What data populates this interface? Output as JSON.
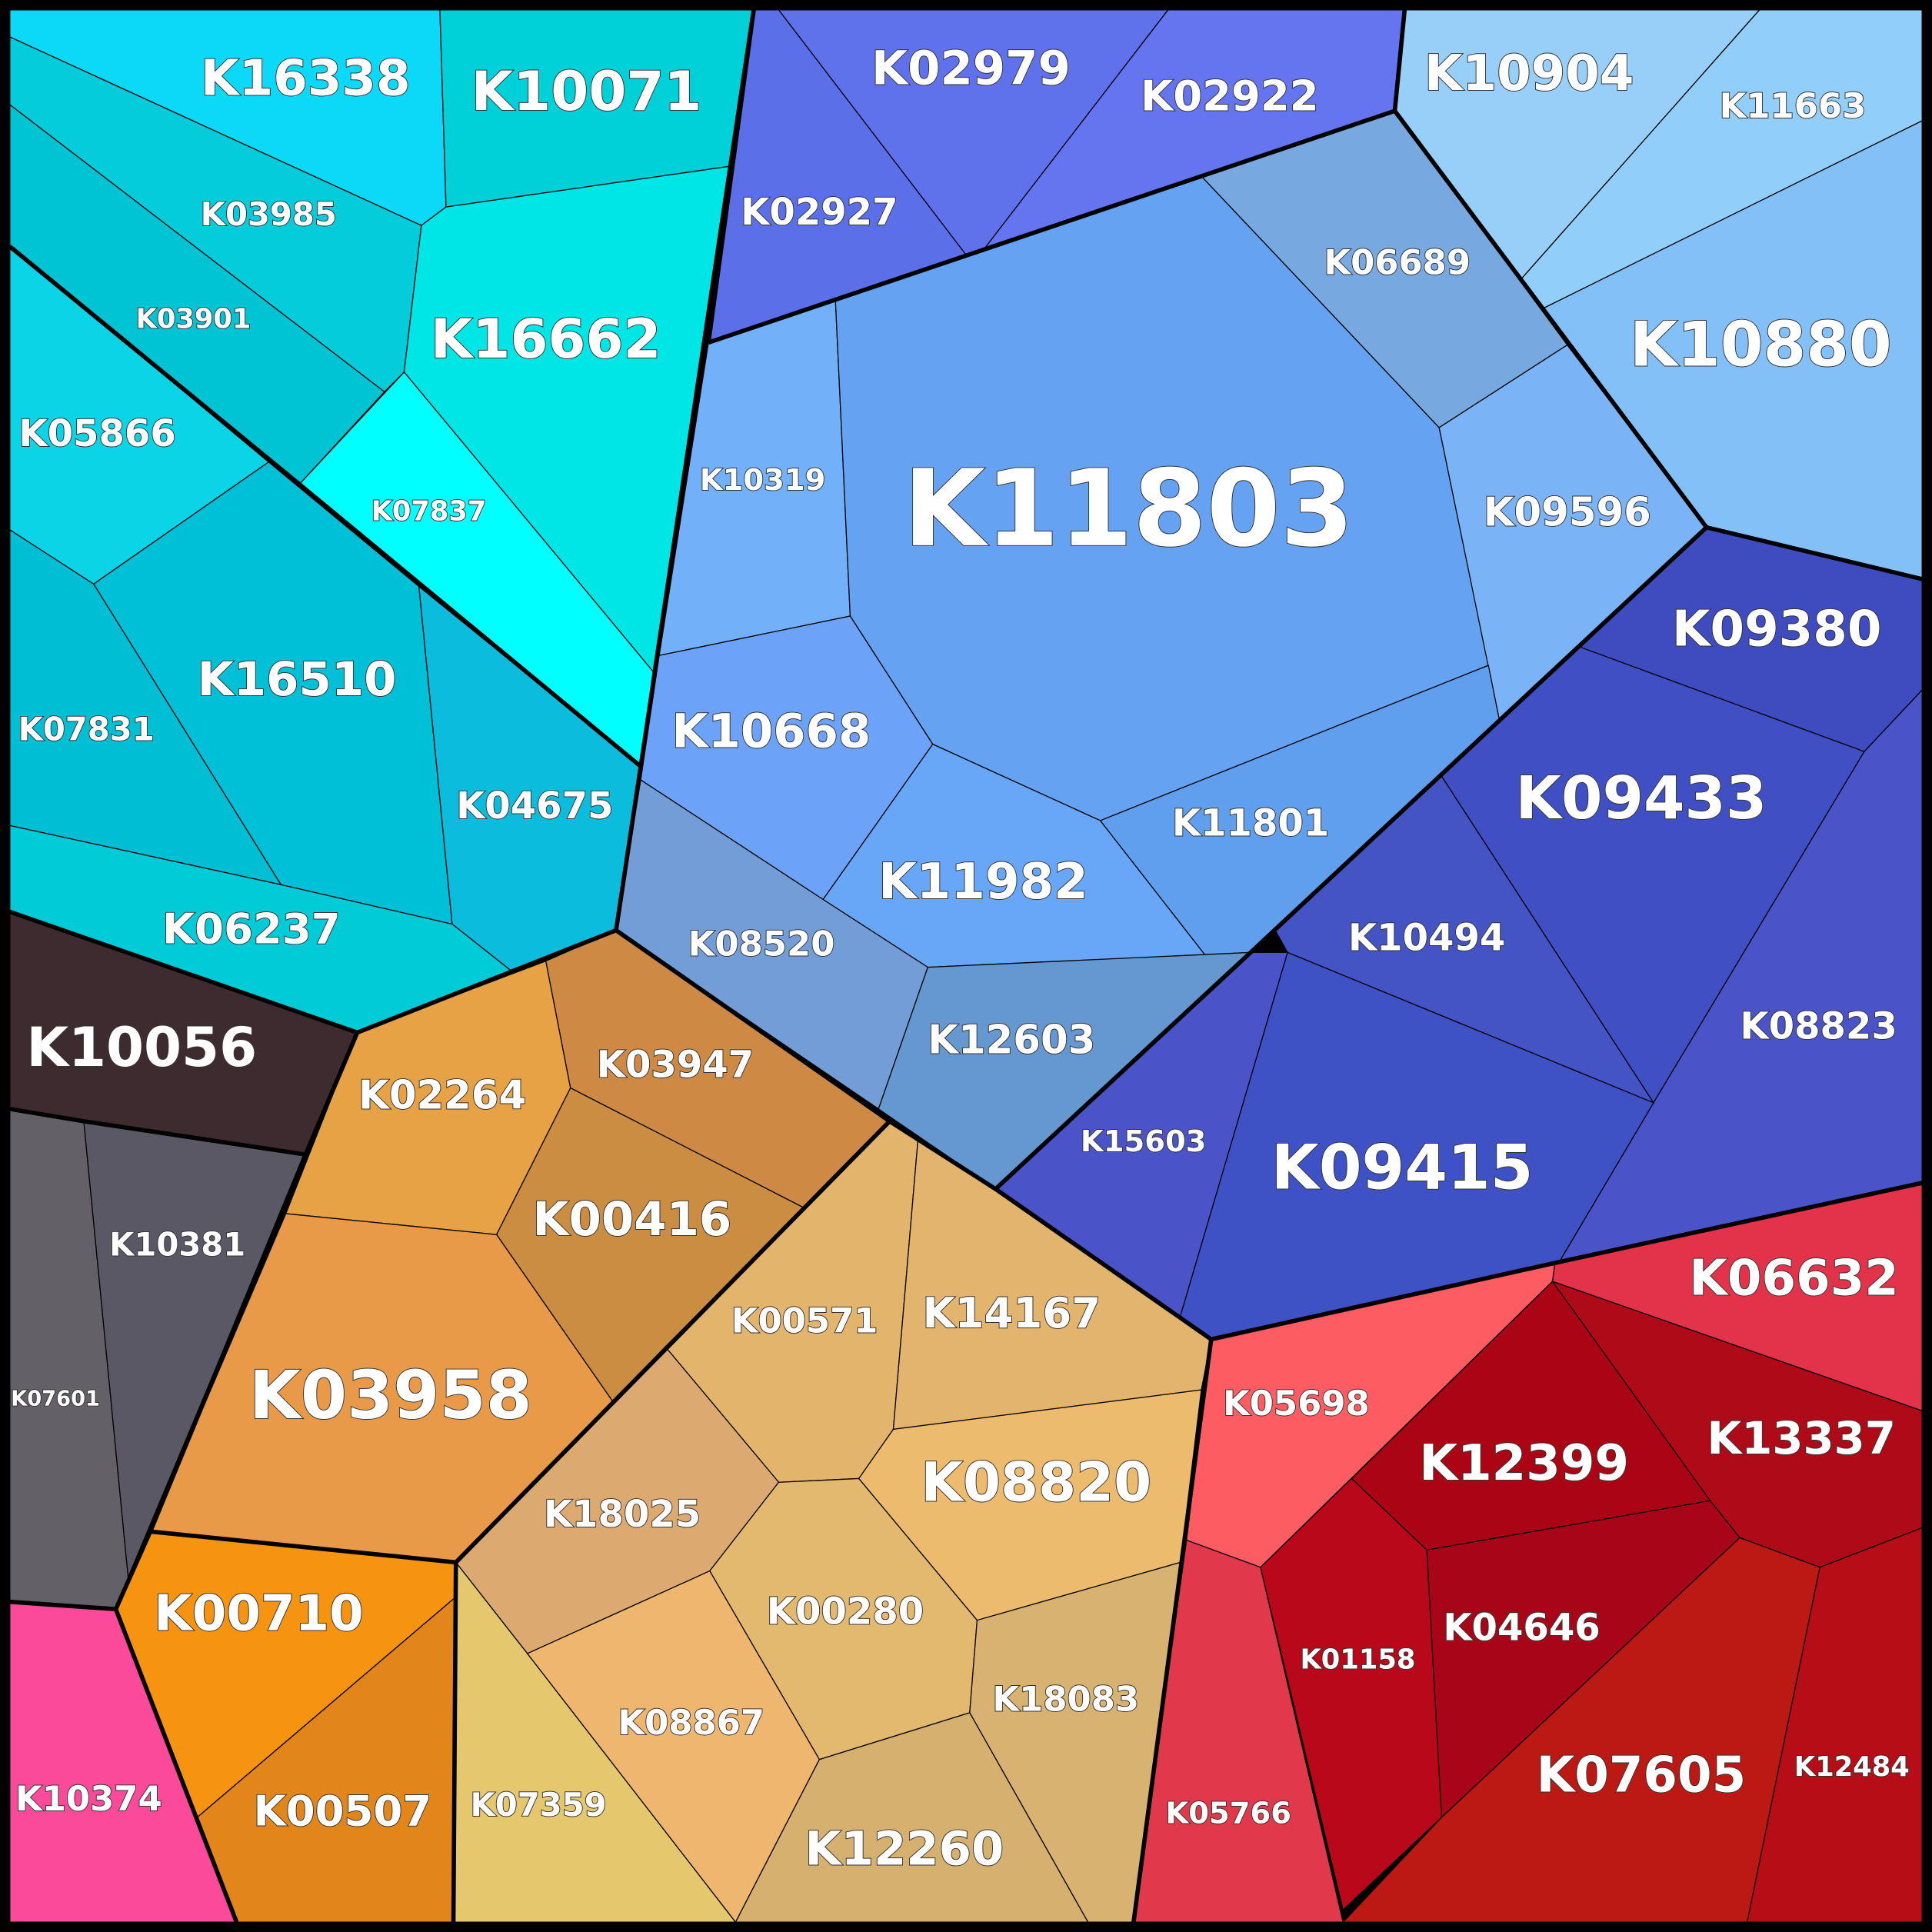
{
  "cells": [
    {
      "label": "K16338"
    },
    {
      "label": "K10071"
    },
    {
      "label": "K03985"
    },
    {
      "label": "K03901"
    },
    {
      "label": "K16662"
    },
    {
      "label": "K07837"
    },
    {
      "label": "K05866"
    },
    {
      "label": "K16510"
    },
    {
      "label": "K04675"
    },
    {
      "label": "K07831"
    },
    {
      "label": "K06237"
    },
    {
      "label": "K10056"
    },
    {
      "label": "K07601"
    },
    {
      "label": "K10381"
    },
    {
      "label": "K10374"
    },
    {
      "label": "K02264"
    },
    {
      "label": "K03947"
    },
    {
      "label": "K00416"
    },
    {
      "label": "K03958"
    },
    {
      "label": "K00710"
    },
    {
      "label": "K00507"
    },
    {
      "label": "K00571"
    },
    {
      "label": "K14167"
    },
    {
      "label": "K18025"
    },
    {
      "label": "K08820"
    },
    {
      "label": "K00280"
    },
    {
      "label": "K07359"
    },
    {
      "label": "K08867"
    },
    {
      "label": "K18083"
    },
    {
      "label": "K12260"
    },
    {
      "label": "K05698"
    },
    {
      "label": "K06632"
    },
    {
      "label": "K12399"
    },
    {
      "label": "K13337"
    },
    {
      "label": "K01158"
    },
    {
      "label": "K04646"
    },
    {
      "label": "K05766"
    },
    {
      "label": "K07605"
    },
    {
      "label": "K12484"
    },
    {
      "label": "K09380"
    },
    {
      "label": "K09433"
    },
    {
      "label": "K08823"
    },
    {
      "label": "K10494"
    },
    {
      "label": "K15603"
    },
    {
      "label": "K09415"
    },
    {
      "label": "K02927"
    },
    {
      "label": "K02979"
    },
    {
      "label": "K02922"
    },
    {
      "label": "K10319"
    },
    {
      "label": "K11803"
    },
    {
      "label": "K06689"
    },
    {
      "label": "K09596"
    },
    {
      "label": "K10668"
    },
    {
      "label": "K11982"
    },
    {
      "label": "K11801"
    },
    {
      "label": "K08520"
    },
    {
      "label": "K12603"
    },
    {
      "label": "K10904"
    },
    {
      "label": "K11663"
    },
    {
      "label": "K10880"
    }
  ]
}
